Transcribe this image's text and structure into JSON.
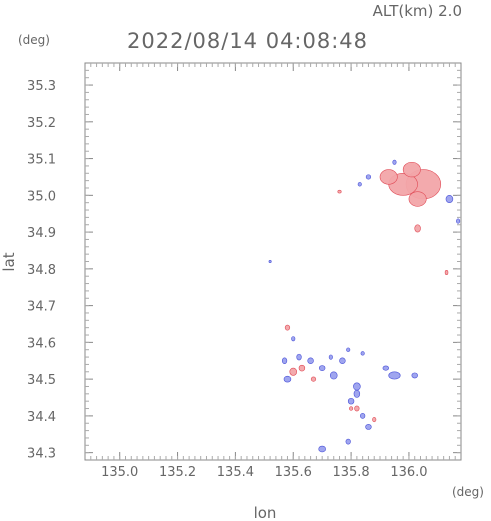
{
  "header": {
    "altitude_label": "ALT(km) 2.0",
    "timestamp": "2022/08/14 04:08:48"
  },
  "colors": {
    "positive": "#f2a5a9",
    "positive_strong": "#e04a55",
    "negative": "#9aa0ee",
    "negative_strong": "#4a52d8",
    "frame": "#888888"
  },
  "chart_data": {
    "type": "scatter",
    "title": "2022/08/14 04:08:48",
    "subtitle": "ALT(km) 2.0",
    "xlabel": "lon",
    "ylabel": "lat",
    "x_unit": "(deg)",
    "y_unit": "(deg)",
    "xlim": [
      134.88,
      136.18
    ],
    "ylim": [
      34.28,
      35.36
    ],
    "x_ticks": [
      135.0,
      135.2,
      135.4,
      135.6,
      135.8,
      136.0
    ],
    "x_tick_labels": [
      "135.0",
      "135.2",
      "135.4",
      "135.6",
      "135.8",
      "136.0"
    ],
    "y_ticks": [
      34.3,
      34.4,
      34.5,
      34.6,
      34.7,
      34.8,
      34.9,
      35.0,
      35.1,
      35.2,
      35.3
    ],
    "y_tick_labels": [
      "34.3",
      "34.4",
      "34.5",
      "34.6",
      "34.7",
      "34.8",
      "34.9",
      "35.0",
      "35.1",
      "35.2",
      "35.3"
    ],
    "grid": false,
    "series": [
      {
        "name": "",
        "polarity": "positive",
        "points": [
          [
            136.05,
            35.03,
            0.06,
            0.04
          ],
          [
            135.98,
            35.03,
            0.05,
            0.03
          ],
          [
            135.93,
            35.05,
            0.03,
            0.02
          ],
          [
            136.01,
            35.07,
            0.03,
            0.02
          ],
          [
            136.03,
            34.99,
            0.03,
            0.02
          ],
          [
            136.03,
            34.91,
            0.01,
            0.01
          ],
          [
            136.13,
            34.79,
            0.005,
            0.006
          ],
          [
            135.58,
            34.64,
            0.008,
            0.007
          ],
          [
            135.6,
            34.52,
            0.012,
            0.01
          ],
          [
            135.63,
            34.53,
            0.01,
            0.008
          ],
          [
            135.67,
            34.5,
            0.008,
            0.006
          ],
          [
            135.82,
            34.42,
            0.008,
            0.007
          ],
          [
            135.8,
            34.42,
            0.006,
            0.005
          ],
          [
            135.88,
            34.39,
            0.006,
            0.006
          ],
          [
            135.76,
            35.01,
            0.006,
            0.004
          ]
        ]
      },
      {
        "name": "",
        "polarity": "negative",
        "points": [
          [
            135.7,
            34.31,
            0.012,
            0.008
          ],
          [
            135.79,
            34.33,
            0.008,
            0.007
          ],
          [
            135.82,
            34.48,
            0.012,
            0.01
          ],
          [
            135.82,
            34.46,
            0.01,
            0.01
          ],
          [
            135.8,
            34.44,
            0.01,
            0.008
          ],
          [
            135.86,
            34.37,
            0.01,
            0.007
          ],
          [
            135.84,
            34.4,
            0.008,
            0.007
          ],
          [
            135.95,
            34.51,
            0.02,
            0.01
          ],
          [
            136.02,
            34.51,
            0.01,
            0.007
          ],
          [
            135.92,
            34.53,
            0.01,
            0.006
          ],
          [
            135.57,
            34.55,
            0.008,
            0.008
          ],
          [
            135.62,
            34.56,
            0.008,
            0.008
          ],
          [
            135.66,
            34.55,
            0.01,
            0.008
          ],
          [
            135.7,
            34.53,
            0.01,
            0.007
          ],
          [
            135.74,
            34.51,
            0.012,
            0.01
          ],
          [
            135.77,
            34.55,
            0.01,
            0.008
          ],
          [
            135.73,
            34.56,
            0.006,
            0.006
          ],
          [
            135.6,
            34.61,
            0.006,
            0.006
          ],
          [
            135.84,
            34.57,
            0.006,
            0.005
          ],
          [
            135.79,
            34.58,
            0.006,
            0.005
          ],
          [
            135.58,
            34.5,
            0.012,
            0.008
          ],
          [
            136.14,
            34.99,
            0.012,
            0.01
          ],
          [
            136.17,
            34.93,
            0.006,
            0.006
          ],
          [
            135.86,
            35.05,
            0.008,
            0.006
          ],
          [
            135.83,
            35.03,
            0.006,
            0.005
          ],
          [
            135.95,
            35.09,
            0.006,
            0.006
          ],
          [
            135.52,
            34.82,
            0.003,
            0.003
          ]
        ]
      }
    ]
  }
}
